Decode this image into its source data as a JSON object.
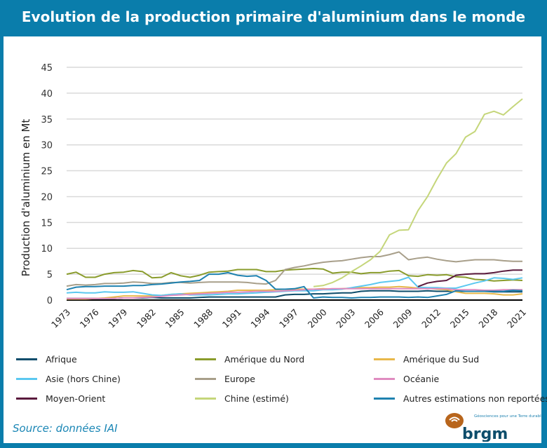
{
  "header": {
    "title": "Evolution de la production primaire d'aluminium dans le monde"
  },
  "footer": {
    "source": "Source: données IAI",
    "logo_text": "brgm",
    "logo_tagline": "Géosciences pour une Terre durable"
  },
  "chart_data": {
    "type": "line",
    "title": "Evolution de la production primaire d'aluminium dans le monde",
    "xlabel": "",
    "ylabel": "Production d'aluminium en Mt",
    "xlim": [
      1973,
      2021
    ],
    "ylim": [
      0,
      45
    ],
    "yticks": [
      "0",
      "5",
      "10",
      "15",
      "20",
      "25",
      "30",
      "35",
      "40",
      "45"
    ],
    "xticks": [
      "1973",
      "1976",
      "1979",
      "1982",
      "1985",
      "1988",
      "1991",
      "1994",
      "1997",
      "2000",
      "2003",
      "2006",
      "2009",
      "2012",
      "2015",
      "2018",
      "2021"
    ],
    "grid": true,
    "legend": "bottom",
    "x": [
      1973,
      1974,
      1975,
      1976,
      1977,
      1978,
      1979,
      1980,
      1981,
      1982,
      1983,
      1984,
      1985,
      1986,
      1987,
      1988,
      1989,
      1990,
      1991,
      1992,
      1993,
      1994,
      1995,
      1996,
      1997,
      1998,
      1999,
      2000,
      2001,
      2002,
      2003,
      2004,
      2005,
      2006,
      2007,
      2008,
      2009,
      2010,
      2011,
      2012,
      2013,
      2014,
      2015,
      2016,
      2017,
      2018,
      2019,
      2020,
      2021
    ],
    "series": [
      {
        "name": "Afrique",
        "color": "#0d4d6b",
        "values": [
          0.3,
          0.3,
          0.3,
          0.3,
          0.3,
          0.3,
          0.4,
          0.4,
          0.4,
          0.5,
          0.4,
          0.4,
          0.4,
          0.4,
          0.5,
          0.6,
          0.6,
          0.6,
          0.6,
          0.6,
          0.6,
          0.6,
          0.6,
          1.0,
          1.1,
          1.1,
          1.2,
          1.2,
          1.3,
          1.4,
          1.4,
          1.7,
          1.8,
          1.8,
          1.8,
          1.7,
          1.7,
          1.7,
          1.8,
          1.7,
          1.7,
          1.7,
          1.7,
          1.7,
          1.7,
          1.6,
          1.6,
          1.6,
          1.6
        ]
      },
      {
        "name": "Amérique du Nord",
        "color": "#8a9c2c",
        "values": [
          5.0,
          5.4,
          4.4,
          4.4,
          5.0,
          5.3,
          5.4,
          5.7,
          5.5,
          4.3,
          4.4,
          5.3,
          4.7,
          4.4,
          4.8,
          5.4,
          5.5,
          5.6,
          5.9,
          5.9,
          5.9,
          5.5,
          5.5,
          5.8,
          5.9,
          6.0,
          6.1,
          6.0,
          5.2,
          5.4,
          5.4,
          5.1,
          5.3,
          5.3,
          5.6,
          5.7,
          4.7,
          4.6,
          4.9,
          4.8,
          4.9,
          4.5,
          4.4,
          4.0,
          3.9,
          3.7,
          3.8,
          3.9,
          3.8
        ]
      },
      {
        "name": "Amérique du Sud",
        "color": "#e8b84a",
        "values": [
          0.2,
          0.2,
          0.2,
          0.3,
          0.4,
          0.6,
          0.8,
          0.8,
          0.8,
          0.8,
          0.9,
          1.1,
          1.2,
          1.3,
          1.4,
          1.5,
          1.6,
          1.7,
          1.9,
          1.9,
          1.9,
          1.9,
          2.0,
          2.1,
          2.1,
          2.1,
          2.1,
          2.2,
          2.1,
          2.2,
          2.3,
          2.4,
          2.4,
          2.5,
          2.5,
          2.6,
          2.5,
          2.3,
          2.3,
          2.1,
          2.0,
          1.6,
          1.3,
          1.3,
          1.3,
          1.2,
          1.0,
          1.0,
          1.2
        ]
      },
      {
        "name": "Asie (hors Chine)",
        "color": "#5bc8f0",
        "values": [
          1.4,
          1.5,
          1.4,
          1.4,
          1.6,
          1.5,
          1.5,
          1.6,
          1.3,
          1.0,
          0.9,
          1.1,
          1.2,
          1.0,
          1.0,
          1.0,
          1.1,
          1.2,
          1.2,
          1.3,
          1.4,
          1.5,
          1.6,
          1.7,
          1.8,
          1.8,
          1.8,
          2.0,
          2.0,
          2.1,
          2.4,
          2.7,
          3.0,
          3.4,
          3.6,
          3.8,
          4.4,
          2.5,
          2.4,
          2.4,
          2.3,
          2.3,
          2.8,
          3.3,
          3.7,
          4.3,
          4.2,
          4.0,
          4.3
        ]
      },
      {
        "name": "Europe",
        "color": "#a89f8a",
        "values": [
          2.7,
          3.0,
          2.9,
          3.0,
          3.2,
          3.2,
          3.3,
          3.5,
          3.4,
          3.2,
          3.2,
          3.4,
          3.4,
          3.3,
          3.4,
          3.5,
          3.5,
          3.5,
          3.5,
          3.4,
          3.2,
          3.1,
          3.8,
          5.9,
          6.3,
          6.6,
          7.0,
          7.3,
          7.5,
          7.6,
          7.9,
          8.2,
          8.4,
          8.4,
          8.8,
          9.3,
          7.8,
          8.1,
          8.3,
          7.9,
          7.6,
          7.4,
          7.6,
          7.8,
          7.8,
          7.8,
          7.6,
          7.5,
          7.5
        ]
      },
      {
        "name": "Océanie",
        "color": "#e08cc0",
        "values": [
          0.3,
          0.3,
          0.3,
          0.3,
          0.3,
          0.3,
          0.4,
          0.4,
          0.5,
          0.6,
          0.7,
          0.9,
          1.0,
          1.1,
          1.2,
          1.3,
          1.4,
          1.5,
          1.5,
          1.6,
          1.7,
          1.7,
          1.7,
          1.8,
          1.9,
          2.0,
          2.1,
          2.1,
          2.2,
          2.2,
          2.2,
          2.2,
          2.2,
          2.2,
          2.2,
          2.2,
          2.2,
          2.2,
          2.2,
          2.2,
          2.2,
          2.0,
          2.0,
          2.0,
          1.9,
          1.9,
          2.0,
          2.0,
          2.0
        ]
      },
      {
        "name": "Moyen-Orient",
        "color": "#5a1a3d",
        "values": [
          null,
          null,
          null,
          null,
          null,
          null,
          null,
          null,
          null,
          null,
          null,
          null,
          null,
          null,
          null,
          null,
          null,
          null,
          null,
          null,
          null,
          null,
          null,
          null,
          null,
          null,
          null,
          null,
          null,
          null,
          null,
          null,
          null,
          null,
          null,
          null,
          null,
          2.6,
          3.3,
          3.6,
          3.8,
          4.8,
          5.0,
          5.1,
          5.1,
          5.3,
          5.6,
          5.8,
          5.8
        ]
      },
      {
        "name": "Chine (estimé)",
        "color": "#c5d67a",
        "values": [
          null,
          null,
          null,
          null,
          null,
          null,
          null,
          null,
          null,
          null,
          null,
          null,
          null,
          null,
          null,
          null,
          null,
          null,
          null,
          null,
          null,
          null,
          null,
          null,
          null,
          null,
          2.6,
          2.8,
          3.4,
          4.3,
          5.5,
          6.6,
          7.8,
          9.4,
          12.6,
          13.5,
          13.6,
          17.3,
          20.0,
          23.4,
          26.5,
          28.3,
          31.5,
          32.6,
          35.9,
          36.5,
          35.8,
          37.4,
          38.9
        ]
      },
      {
        "name": "Autres estimations non reportées",
        "color": "#1f82b0",
        "values": [
          2.0,
          2.5,
          2.6,
          2.6,
          2.7,
          2.7,
          2.7,
          2.8,
          2.8,
          3.0,
          3.1,
          3.3,
          3.5,
          3.6,
          3.8,
          5.0,
          5.0,
          5.3,
          4.8,
          4.6,
          4.7,
          3.8,
          2.1,
          2.1,
          2.2,
          2.6,
          0.4,
          0.6,
          0.5,
          0.5,
          0.4,
          0.5,
          0.5,
          0.6,
          0.6,
          0.6,
          0.5,
          0.6,
          0.5,
          0.8,
          1.1,
          1.8,
          1.7,
          1.7,
          1.7,
          1.7,
          1.7,
          1.9,
          1.8
        ]
      }
    ]
  }
}
